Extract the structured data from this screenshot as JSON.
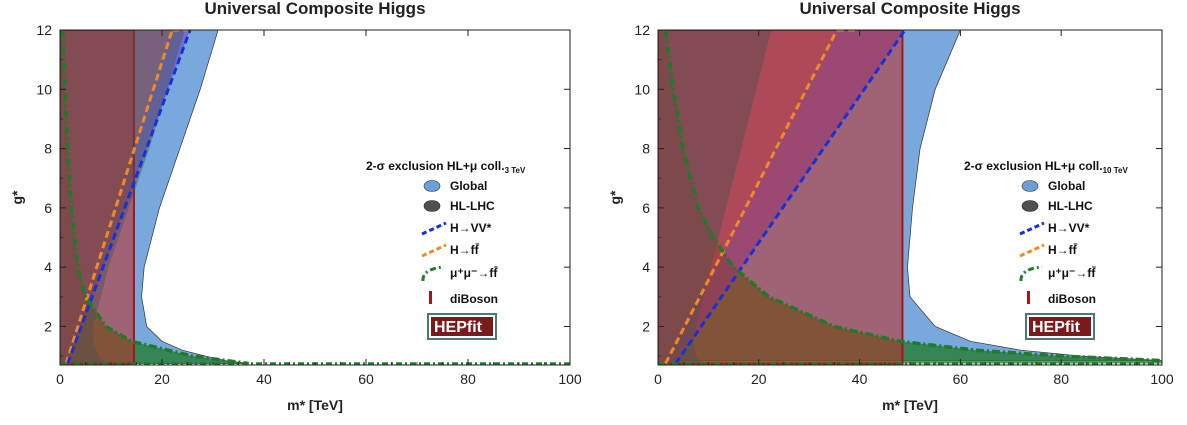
{
  "colors": {
    "global": "#6a9fd8",
    "hllhc": "#505050",
    "hvv": "#1530dd",
    "hff": "#f08a22",
    "mumu": "#1f7a2a",
    "diboson": "#a51616",
    "hepfit_bg": "#7a1a1a",
    "hepfit_border": "#4a7a78"
  },
  "chart_data": [
    {
      "type": "area",
      "title": "Universal Composite Higgs",
      "xlabel": "m* [TeV]",
      "ylabel": "g*",
      "xlim": [
        0,
        100
      ],
      "ylim": [
        0.7,
        12
      ],
      "xticks": [
        0,
        20,
        40,
        60,
        80,
        100
      ],
      "yticks": [
        2,
        4,
        6,
        8,
        10,
        12
      ],
      "grid": false,
      "legend_position": "right",
      "legend_title": "2-σ exclusion HL+μ coll.",
      "legend_subscript": "3 TeV",
      "legend": [
        "Global",
        "HL-LHC",
        "H→VV*",
        "H→ff̄",
        "μ⁺μ⁻→ff̄",
        "diBoson"
      ],
      "logo": "HEPfit",
      "series": [
        {
          "name": "Global",
          "g": [
            12,
            10,
            8,
            6,
            4,
            3,
            2,
            1.5,
            1.2,
            1.0,
            0.85,
            0.75
          ],
          "m_max": [
            31,
            27.5,
            23.5,
            19.5,
            16.5,
            16,
            17,
            20,
            24,
            28.5,
            32.5,
            37
          ]
        },
        {
          "name": "HL-LHC",
          "g": [
            12,
            10,
            8,
            6,
            4,
            3,
            2,
            1.5,
            1.0,
            0.75
          ],
          "m_max": [
            24.5,
            21,
            17.5,
            13.5,
            9.5,
            8,
            6.5,
            6.5,
            7.5,
            9
          ]
        },
        {
          "name": "H→VV*",
          "m": [
            1.5,
            25.5
          ],
          "g": [
            0.75,
            12
          ]
        },
        {
          "name": "H→ff̄",
          "m": [
            1.2,
            22
          ],
          "g": [
            0.75,
            12
          ]
        },
        {
          "name": "μ⁺μ⁻→ff̄",
          "g": [
            12,
            10,
            8,
            6,
            4,
            3,
            2,
            1.5,
            1.0,
            0.75
          ],
          "m": [
            0.5,
            1.0,
            1.5,
            2.2,
            3.5,
            5,
            9,
            14,
            26,
            37
          ]
        },
        {
          "name": "diBoson",
          "m_max": 14.5,
          "g_min": 0.75
        }
      ]
    },
    {
      "type": "area",
      "title": "Universal Composite Higgs",
      "xlabel": "m* [TeV]",
      "ylabel": "g*",
      "xlim": [
        0,
        100
      ],
      "ylim": [
        0.7,
        12
      ],
      "xticks": [
        0,
        20,
        40,
        60,
        80,
        100
      ],
      "yticks": [
        2,
        4,
        6,
        8,
        10,
        12
      ],
      "grid": false,
      "legend_position": "right",
      "legend_title": "2-σ exclusion HL+μ coll.",
      "legend_subscript": "10 TeV",
      "legend": [
        "Global",
        "HL-LHC",
        "H→VV*",
        "H→ff̄",
        "μ⁺μ⁻→ff̄",
        "diBoson"
      ],
      "logo": "HEPfit",
      "series": [
        {
          "name": "Global",
          "g": [
            12,
            10,
            8,
            6,
            4,
            3,
            2,
            1.5,
            1.2,
            1.0,
            0.85
          ],
          "m_max": [
            60,
            55,
            52,
            50.5,
            49.5,
            50,
            55,
            62,
            72,
            84,
            100
          ]
        },
        {
          "name": "HL-LHC",
          "g": [
            12,
            10,
            8,
            6,
            4,
            3,
            2,
            1.5,
            1.0,
            0.75
          ],
          "m_max": [
            22.5,
            19.5,
            16.5,
            13.5,
            10.5,
            9,
            7.5,
            7,
            7.5,
            9
          ]
        },
        {
          "name": "H→VV*",
          "m": [
            3.5,
            49
          ],
          "g": [
            0.75,
            12
          ]
        },
        {
          "name": "H→ff̄",
          "m": [
            1.5,
            35.5
          ],
          "g": [
            0.75,
            12
          ]
        },
        {
          "name": "μ⁺μ⁻→ff̄",
          "g": [
            12,
            10,
            8,
            6,
            5,
            4,
            3,
            2,
            1.5,
            1.2,
            1.0,
            0.85
          ],
          "m": [
            1.5,
            3,
            5,
            8,
            11,
            15,
            22,
            35,
            48,
            63,
            80,
            100
          ]
        },
        {
          "name": "diBoson",
          "m_max": 48.5,
          "g_min": 0.75
        }
      ]
    }
  ]
}
